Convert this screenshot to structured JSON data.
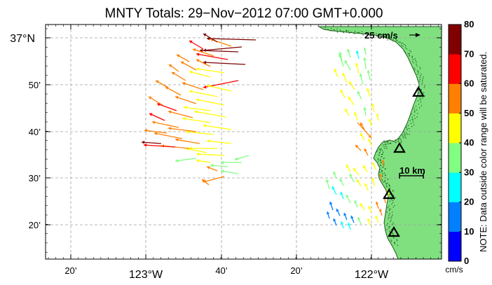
{
  "title": "MNTY Totals: 29−Nov−2012 07:00 GMT+0.000",
  "y_ticks": [
    {
      "label": "37°N",
      "big": true
    },
    {
      "label": "50’",
      "big": false
    },
    {
      "label": "40’",
      "big": false
    },
    {
      "label": "30’",
      "big": false
    },
    {
      "label": "20’",
      "big": false
    }
  ],
  "x_ticks": [
    {
      "label": "20’",
      "big": false
    },
    {
      "label": "123°W",
      "big": true
    },
    {
      "label": "40’",
      "big": false
    },
    {
      "label": "20’",
      "big": false
    },
    {
      "label": "122°W",
      "big": true
    }
  ],
  "scale_vector_label": "25 cm/s",
  "scale_bar_label": "10 km",
  "colorbar": {
    "ticks": [
      "80",
      "70",
      "60",
      "50",
      "40",
      "30",
      "20",
      "10",
      "0"
    ],
    "unit": "cm/s",
    "note": "NOTE: Data outside color range will be saturated.",
    "colors": [
      "#0000ff",
      "#0080ff",
      "#00ffff",
      "#80ff80",
      "#ffff00",
      "#ff8000",
      "#ff0000",
      "#800000"
    ]
  },
  "colors": {
    "land": "#80e080",
    "coast": "#1a5a1a",
    "grid": "#a0a0a0"
  },
  "stations": [
    {
      "name": "station-1"
    },
    {
      "name": "station-2"
    },
    {
      "name": "station-3"
    },
    {
      "name": "station-4"
    }
  ]
}
